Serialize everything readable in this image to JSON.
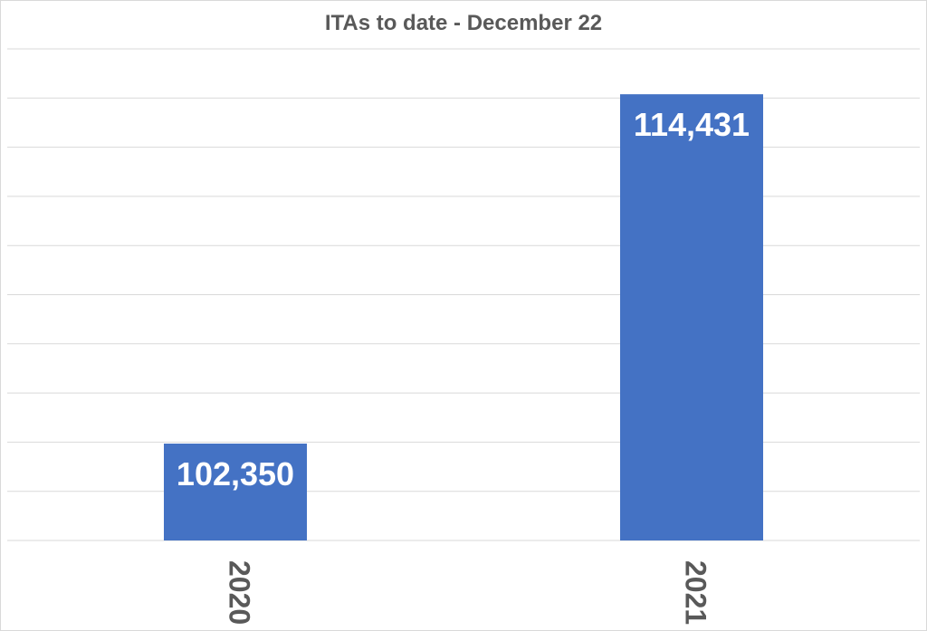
{
  "chart_data": {
    "type": "bar",
    "title": "ITAs to date - December 22",
    "xlabel": "",
    "ylabel": "",
    "categories": [
      "2020",
      "2021"
    ],
    "values": [
      102350,
      114431
    ],
    "data_labels": [
      "102,350",
      "114,431"
    ],
    "ylim": [
      99000,
      116000
    ],
    "grid": true,
    "legend": "none",
    "colors": {
      "bar": "#4472c4",
      "data_label": "#ffffff",
      "tick_label": "#595959",
      "title": "#595959",
      "gridline": "#d9d9d9"
    }
  }
}
